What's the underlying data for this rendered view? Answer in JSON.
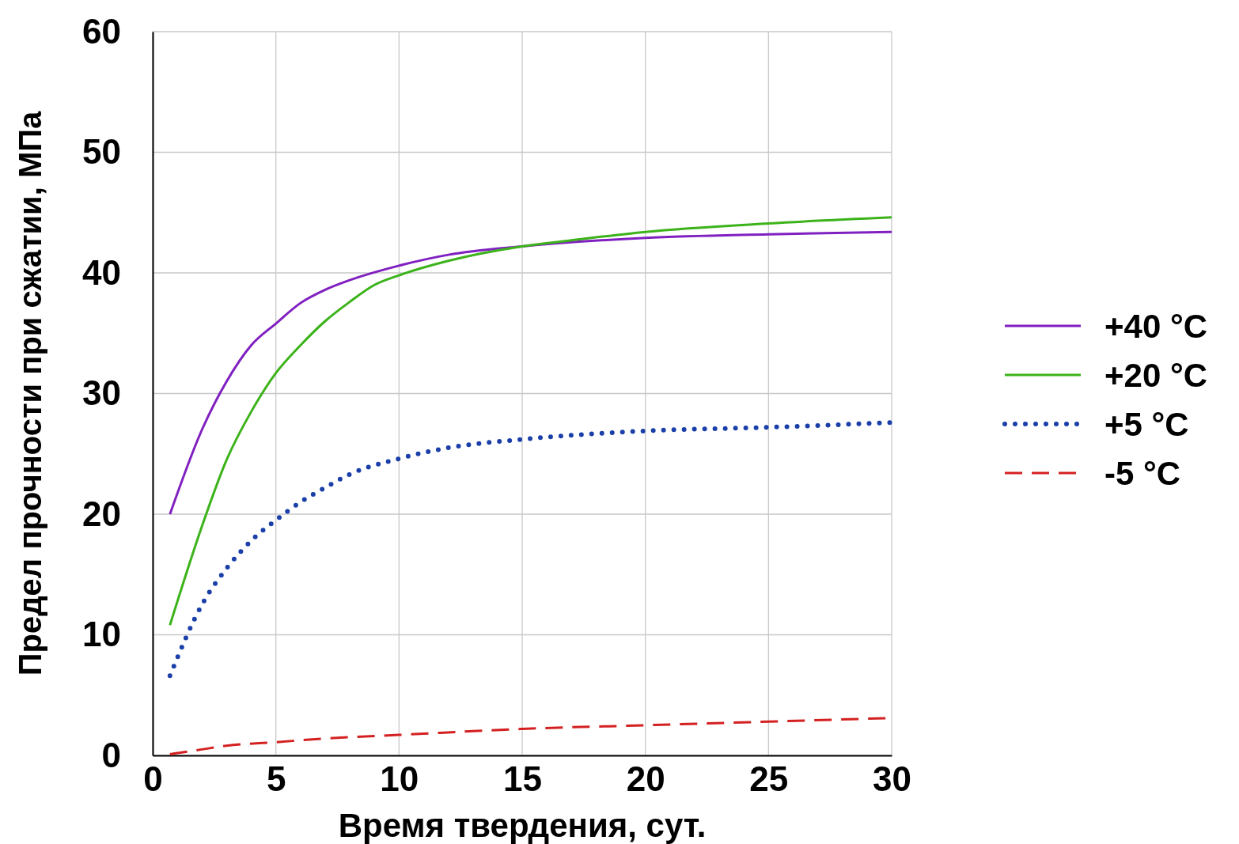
{
  "chart_data": {
    "type": "line",
    "xlabel": "Время твердения, сут.",
    "ylabel": "Предел прочности при сжатии, МПа",
    "xlim": [
      0,
      30
    ],
    "xticks": [
      0,
      5,
      10,
      15,
      20,
      25,
      30
    ],
    "ylim": [
      0,
      60
    ],
    "yticks": [
      0,
      10,
      20,
      30,
      40,
      50,
      60
    ],
    "grid": true,
    "legend": "right",
    "marker": "none",
    "series": [
      {
        "name": "+40 °C",
        "color": "#8020c0",
        "line_style": "solid",
        "x": [
          0.7,
          2,
          3,
          4,
          5,
          6,
          7,
          8,
          10,
          12,
          15,
          20,
          25,
          30
        ],
        "values": [
          20,
          27,
          31,
          34,
          35.8,
          37.5,
          38.6,
          39.4,
          40.6,
          41.5,
          42.2,
          42.9,
          43.2,
          43.4
        ]
      },
      {
        "name": "+20 °C",
        "color": "#3cb31a",
        "line_style": "solid",
        "x": [
          0.7,
          2,
          3,
          4,
          5,
          6,
          7,
          8,
          9,
          10,
          12,
          15,
          17,
          20,
          25,
          30
        ],
        "values": [
          10.8,
          19,
          24.5,
          28.5,
          31.7,
          34,
          36,
          37.6,
          39,
          39.8,
          41,
          42.2,
          42.7,
          43.4,
          44.1,
          44.6
        ]
      },
      {
        "name": "+5 °C",
        "color": "#1a3fa8",
        "line_style": "dotted",
        "x": [
          0.7,
          2,
          3,
          4,
          5,
          6,
          7,
          8,
          10,
          12,
          15,
          20,
          25,
          30
        ],
        "values": [
          6.6,
          12.5,
          15.5,
          17.8,
          19.5,
          21,
          22.2,
          23.3,
          24.6,
          25.5,
          26.2,
          26.9,
          27.2,
          27.6
        ]
      },
      {
        "name": "-5 °C",
        "color": "#d42020",
        "line_style": "dashed",
        "x": [
          0.7,
          2,
          3,
          5,
          7,
          10,
          15,
          20,
          25,
          30
        ],
        "values": [
          0.1,
          0.5,
          0.8,
          1.1,
          1.4,
          1.7,
          2.2,
          2.5,
          2.8,
          3.1
        ]
      }
    ]
  }
}
